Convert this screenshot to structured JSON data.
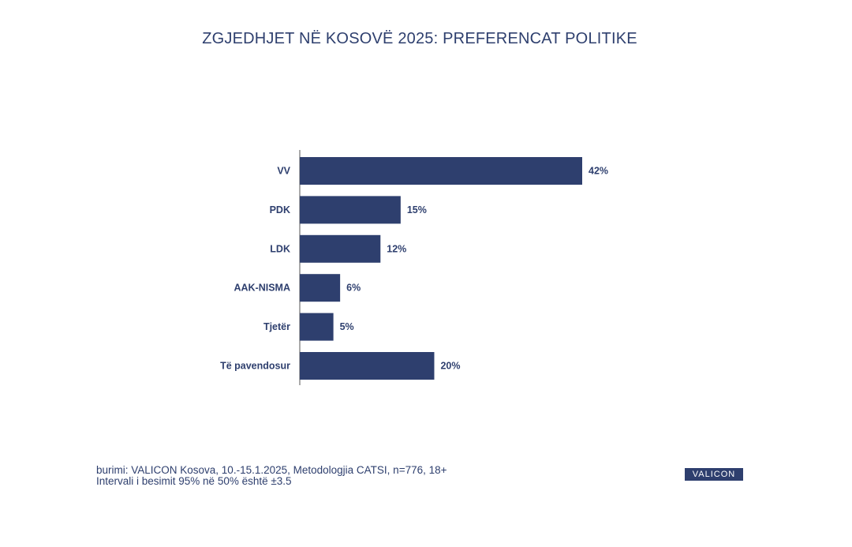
{
  "title": "ZGJEDHJET NË KOSOVË 2025: PREFERENCAT POLITIKE",
  "colors": {
    "bar": "#2e3f6e",
    "text": "#2e3f6e",
    "axis": "#555555"
  },
  "chart_data": {
    "type": "bar",
    "orientation": "horizontal",
    "categories": [
      "VV",
      "PDK",
      "LDK",
      "AAK-NISMA",
      "Tjetër",
      "Të pavendosur"
    ],
    "values": [
      42,
      15,
      12,
      6,
      5,
      20
    ],
    "data_labels": [
      "42%",
      "15%",
      "12%",
      "6%",
      "5%",
      "20%"
    ],
    "xlim": [
      0,
      42
    ],
    "grid": false,
    "legend": "none"
  },
  "footer": {
    "line1": "burimi: VALICON Kosova, 10.-15.1.2025, Metodologjia CATSI, n=776, 18+",
    "line2": "Intervali i besimit 95% në 50% është ±3.5"
  },
  "logo_text": "VALICON"
}
